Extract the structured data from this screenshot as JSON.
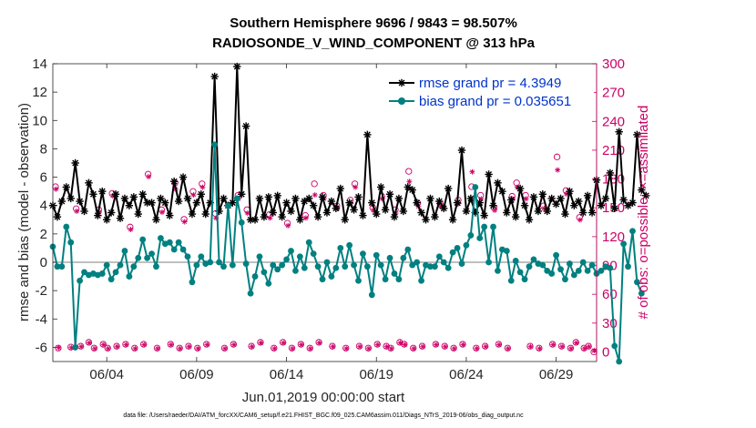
{
  "chart_data": {
    "type": "line",
    "title": "Southern Hemisphere 9696 / 9843 = 98.507%",
    "subtitle": "RADIOSONDE_V_WIND_COMPONENT @ 313 hPa",
    "ylabel": "rmse and bias (model - observation)",
    "ylabel_right": "# of obs: o=possible; ×=assimilated",
    "xlabel": "Jun.01,2019 00:00:00 start",
    "footnote": "data file: /Users/raeder/DAI/ATM_forcXX/CAM6_setup/f.e21.FHIST_BGC.f09_025.CAM6assim.011/Diags_NTrS_2019-06/obs_diag_output.nc",
    "x_ticks": [
      {
        "value": 4,
        "label": "06/04"
      },
      {
        "value": 9,
        "label": "06/09"
      },
      {
        "value": 14,
        "label": "06/14"
      },
      {
        "value": 19,
        "label": "06/19"
      },
      {
        "value": 24,
        "label": "06/24"
      },
      {
        "value": 29,
        "label": "06/29"
      }
    ],
    "xlim": [
      1.0,
      31.25
    ],
    "ylim": [
      -7,
      14
    ],
    "y_ticks": [
      -6,
      -4,
      -2,
      0,
      2,
      4,
      6,
      8,
      10,
      12,
      14
    ],
    "ylim_right": [
      -10,
      300
    ],
    "y_ticks_right": [
      0,
      30,
      60,
      90,
      120,
      150,
      180,
      210,
      240,
      270,
      300
    ],
    "legend": [
      {
        "label": "rmse grand pr = 4.3949",
        "color": "#000000"
      },
      {
        "label": "bias grand pr = 0.035651",
        "color": "#008080"
      }
    ],
    "series": [
      {
        "name": "rmse grand pr = 4.3949",
        "color": "#000000",
        "step": 0.25,
        "x0": 1.0,
        "values": [
          4.0,
          3.2,
          4.3,
          5.3,
          4.5,
          7.0,
          4.3,
          3.6,
          5.6,
          4.8,
          3.3,
          5.0,
          3.0,
          3.5,
          4.8,
          3.1,
          4.5,
          4.0,
          4.6,
          3.4,
          4.8,
          4.2,
          4.2,
          3.0,
          4.5,
          4.2,
          3.3,
          5.7,
          4.3,
          6.0,
          4.5,
          3.4,
          4.2,
          4.8,
          3.4,
          4.2,
          13.1,
          3.6,
          4.5,
          4.0,
          4.2,
          13.8,
          4.8,
          9.6,
          3.0,
          3.0,
          4.5,
          3.2,
          4.6,
          3.5,
          4.7,
          3.2,
          4.2,
          3.6,
          4.5,
          3.0,
          4.3,
          4.5,
          4.0,
          3.2,
          4.6,
          3.5,
          4.3,
          3.8,
          5.2,
          3.0,
          4.2,
          3.7,
          4.6,
          3.3,
          9.0,
          4.2,
          3.4,
          5.3,
          3.7,
          4.8,
          3.2,
          4.5,
          3.6,
          5.3,
          5.1,
          4.2,
          3.5,
          3.0,
          4.5,
          3.2,
          4.3,
          3.8,
          5.2,
          3.0,
          4.2,
          7.9,
          3.6,
          4.5,
          3.5,
          4.2,
          3.3,
          6.2,
          4.0,
          5.6,
          5.0,
          3.5,
          4.4,
          3.2,
          5.2,
          4.0,
          3.0,
          4.6,
          3.6,
          4.8,
          3.6,
          4.5,
          4.1,
          4.5,
          3.4,
          5.0,
          4.0,
          4.3,
          3.5,
          4.7,
          3.5,
          5.8,
          4.0,
          4.5,
          6.3,
          3.8,
          9.2,
          4.4,
          4.0,
          4.2,
          9.0,
          5.1,
          4.7
        ],
        "marker": "asterisk"
      },
      {
        "name": "bias grand pr = 0.035651",
        "color": "#008080",
        "step": 0.25,
        "x0": 1.0,
        "values": [
          1.1,
          -0.3,
          -0.3,
          2.5,
          1.4,
          -6.0,
          -1.3,
          -0.7,
          -0.9,
          -0.8,
          -0.9,
          -0.8,
          -0.2,
          -1.2,
          -0.7,
          -0.2,
          0.8,
          -1.0,
          -0.3,
          0.3,
          1.6,
          0.3,
          0.6,
          -0.3,
          1.7,
          1.3,
          1.4,
          0.9,
          1.4,
          0.9,
          0.4,
          -1.4,
          -0.2,
          0.4,
          -0.1,
          0.0,
          8.3,
          0.0,
          -0.3,
          4.0,
          -0.2,
          4.5,
          2.8,
          -0.1,
          -2.2,
          -1.0,
          0.4,
          -0.7,
          -1.5,
          -0.2,
          -0.5,
          -0.2,
          0.2,
          0.8,
          -0.6,
          0.4,
          -0.4,
          1.4,
          0.6,
          -0.3,
          -1.2,
          0.0,
          -1.0,
          -0.4,
          1.0,
          -0.3,
          1.2,
          -0.2,
          -1.3,
          0.6,
          -0.3,
          -2.3,
          0.5,
          -0.2,
          -1.2,
          0.3,
          -0.8,
          -1.2,
          0.3,
          0.9,
          -0.2,
          0.0,
          -1.3,
          -0.2,
          -0.3,
          -0.3,
          0.4,
          0.0,
          -0.4,
          0.7,
          1.0,
          -0.1,
          1.2,
          1.9,
          5.3,
          1.7,
          2.5,
          0.0,
          2.5,
          -0.6,
          0.9,
          0.8,
          -1.3,
          0.1,
          -0.7,
          -1.2,
          -0.3,
          0.2,
          -0.1,
          -0.2,
          -0.6,
          -0.8,
          0.5,
          -0.5,
          -1.2,
          -0.1,
          -0.9,
          -0.6,
          0.0,
          -0.6,
          -0.2,
          -0.8,
          -0.6,
          -0.3,
          -0.4,
          -5.9,
          -7.0,
          1.3,
          -0.3,
          2.2,
          -1.4,
          -2.2
        ],
        "marker": "circle"
      },
      {
        "name": "# of obs possible",
        "axis": "right",
        "color": "#cc0066",
        "marker": "open-circle",
        "points": [
          [
            1.15,
            172
          ],
          [
            1.3,
            4
          ],
          [
            2.0,
            5
          ],
          [
            2.3,
            149
          ],
          [
            2.55,
            6
          ],
          [
            3.0,
            10
          ],
          [
            3.3,
            4
          ],
          [
            3.55,
            148
          ],
          [
            3.8,
            8
          ],
          [
            4.05,
            4
          ],
          [
            4.3,
            165
          ],
          [
            4.55,
            6
          ],
          [
            5.05,
            8
          ],
          [
            5.3,
            130
          ],
          [
            5.55,
            4
          ],
          [
            6.05,
            8
          ],
          [
            6.3,
            185
          ],
          [
            6.8,
            4
          ],
          [
            7.05,
            148
          ],
          [
            7.55,
            8
          ],
          [
            7.8,
            176
          ],
          [
            8.05,
            4
          ],
          [
            8.3,
            138
          ],
          [
            8.55,
            6
          ],
          [
            8.8,
            167
          ],
          [
            9.05,
            4
          ],
          [
            9.3,
            175
          ],
          [
            9.55,
            8
          ],
          [
            10.05,
            144
          ],
          [
            10.55,
            4
          ],
          [
            11.05,
            8
          ],
          [
            11.3,
            163
          ],
          [
            11.8,
            148
          ],
          [
            12.05,
            6
          ],
          [
            12.55,
            10
          ],
          [
            13.05,
            143
          ],
          [
            13.3,
            4
          ],
          [
            13.8,
            10
          ],
          [
            14.05,
            134
          ],
          [
            14.3,
            4
          ],
          [
            14.8,
            8
          ],
          [
            15.05,
            142
          ],
          [
            15.3,
            4
          ],
          [
            15.55,
            175
          ],
          [
            15.8,
            10
          ],
          [
            16.05,
            163
          ],
          [
            16.55,
            6
          ],
          [
            16.8,
            152
          ],
          [
            17.3,
            4
          ],
          [
            17.55,
            158
          ],
          [
            17.8,
            175
          ],
          [
            18.05,
            6
          ],
          [
            18.55,
            4
          ],
          [
            18.8,
            150
          ],
          [
            19.05,
            8
          ],
          [
            19.3,
            162
          ],
          [
            19.55,
            6
          ],
          [
            19.8,
            4
          ],
          [
            20.05,
            148
          ],
          [
            20.3,
            10
          ],
          [
            20.55,
            8
          ],
          [
            20.8,
            188
          ],
          [
            21.05,
            4
          ],
          [
            21.3,
            155
          ],
          [
            21.55,
            6
          ],
          [
            22.3,
            8
          ],
          [
            22.55,
            154
          ],
          [
            22.8,
            6
          ],
          [
            23.3,
            4
          ],
          [
            23.55,
            158
          ],
          [
            23.8,
            8
          ],
          [
            24.3,
            172
          ],
          [
            24.55,
            4
          ],
          [
            24.8,
            163
          ],
          [
            25.05,
            6
          ],
          [
            25.55,
            150
          ],
          [
            25.8,
            8
          ],
          [
            26.3,
            4
          ],
          [
            26.55,
            162
          ],
          [
            26.8,
            176
          ],
          [
            27.3,
            163
          ],
          [
            27.55,
            6
          ],
          [
            28.05,
            4
          ],
          [
            28.3,
            152
          ],
          [
            28.8,
            8
          ],
          [
            29.05,
            203
          ],
          [
            29.3,
            6
          ],
          [
            29.55,
            168
          ],
          [
            29.8,
            4
          ],
          [
            30.1,
            10
          ],
          [
            30.3,
            140
          ],
          [
            30.55,
            4
          ],
          [
            30.8,
            6
          ],
          [
            31.1,
            0
          ]
        ]
      },
      {
        "name": "# of obs assimilated",
        "axis": "right",
        "color": "#cc0066",
        "marker": "asterisk",
        "points": [
          [
            1.15,
            170
          ],
          [
            1.3,
            5
          ],
          [
            2.0,
            5
          ],
          [
            2.3,
            147
          ],
          [
            2.55,
            6
          ],
          [
            3.0,
            10
          ],
          [
            3.3,
            4
          ],
          [
            3.55,
            146
          ],
          [
            3.8,
            8
          ],
          [
            4.05,
            4
          ],
          [
            4.3,
            163
          ],
          [
            4.55,
            6
          ],
          [
            5.05,
            8
          ],
          [
            5.3,
            128
          ],
          [
            5.55,
            4
          ],
          [
            6.05,
            8
          ],
          [
            6.3,
            183
          ],
          [
            6.8,
            4
          ],
          [
            7.05,
            146
          ],
          [
            7.55,
            8
          ],
          [
            7.8,
            170
          ],
          [
            8.05,
            4
          ],
          [
            8.3,
            136
          ],
          [
            8.55,
            6
          ],
          [
            8.8,
            164
          ],
          [
            9.05,
            4
          ],
          [
            9.3,
            172
          ],
          [
            9.55,
            8
          ],
          [
            10.05,
            140
          ],
          [
            10.55,
            4
          ],
          [
            11.05,
            8
          ],
          [
            11.3,
            160
          ],
          [
            11.8,
            145
          ],
          [
            12.05,
            6
          ],
          [
            12.55,
            10
          ],
          [
            13.05,
            140
          ],
          [
            13.3,
            4
          ],
          [
            13.8,
            10
          ],
          [
            14.05,
            132
          ],
          [
            14.3,
            4
          ],
          [
            14.8,
            8
          ],
          [
            15.05,
            140
          ],
          [
            15.3,
            4
          ],
          [
            15.55,
            164
          ],
          [
            15.8,
            10
          ],
          [
            16.05,
            160
          ],
          [
            16.55,
            6
          ],
          [
            16.8,
            150
          ],
          [
            17.3,
            4
          ],
          [
            17.55,
            155
          ],
          [
            17.8,
            172
          ],
          [
            18.05,
            6
          ],
          [
            18.55,
            4
          ],
          [
            18.8,
            148
          ],
          [
            19.05,
            8
          ],
          [
            19.3,
            160
          ],
          [
            19.55,
            6
          ],
          [
            19.8,
            4
          ],
          [
            20.05,
            145
          ],
          [
            20.3,
            10
          ],
          [
            20.55,
            8
          ],
          [
            20.8,
            178
          ],
          [
            21.05,
            4
          ],
          [
            21.3,
            152
          ],
          [
            21.55,
            6
          ],
          [
            22.3,
            8
          ],
          [
            22.55,
            152
          ],
          [
            22.8,
            6
          ],
          [
            23.3,
            4
          ],
          [
            23.55,
            155
          ],
          [
            23.8,
            8
          ],
          [
            24.3,
            188
          ],
          [
            24.55,
            4
          ],
          [
            24.8,
            160
          ],
          [
            25.05,
            6
          ],
          [
            25.55,
            148
          ],
          [
            25.8,
            8
          ],
          [
            26.3,
            4
          ],
          [
            26.55,
            160
          ],
          [
            26.8,
            172
          ],
          [
            27.3,
            160
          ],
          [
            27.55,
            6
          ],
          [
            28.05,
            4
          ],
          [
            28.3,
            150
          ],
          [
            28.8,
            8
          ],
          [
            29.05,
            190
          ],
          [
            29.3,
            6
          ],
          [
            29.55,
            165
          ],
          [
            29.8,
            4
          ],
          [
            30.1,
            10
          ],
          [
            30.3,
            138
          ],
          [
            30.55,
            4
          ],
          [
            30.8,
            6
          ],
          [
            31.1,
            2
          ]
        ]
      }
    ]
  }
}
